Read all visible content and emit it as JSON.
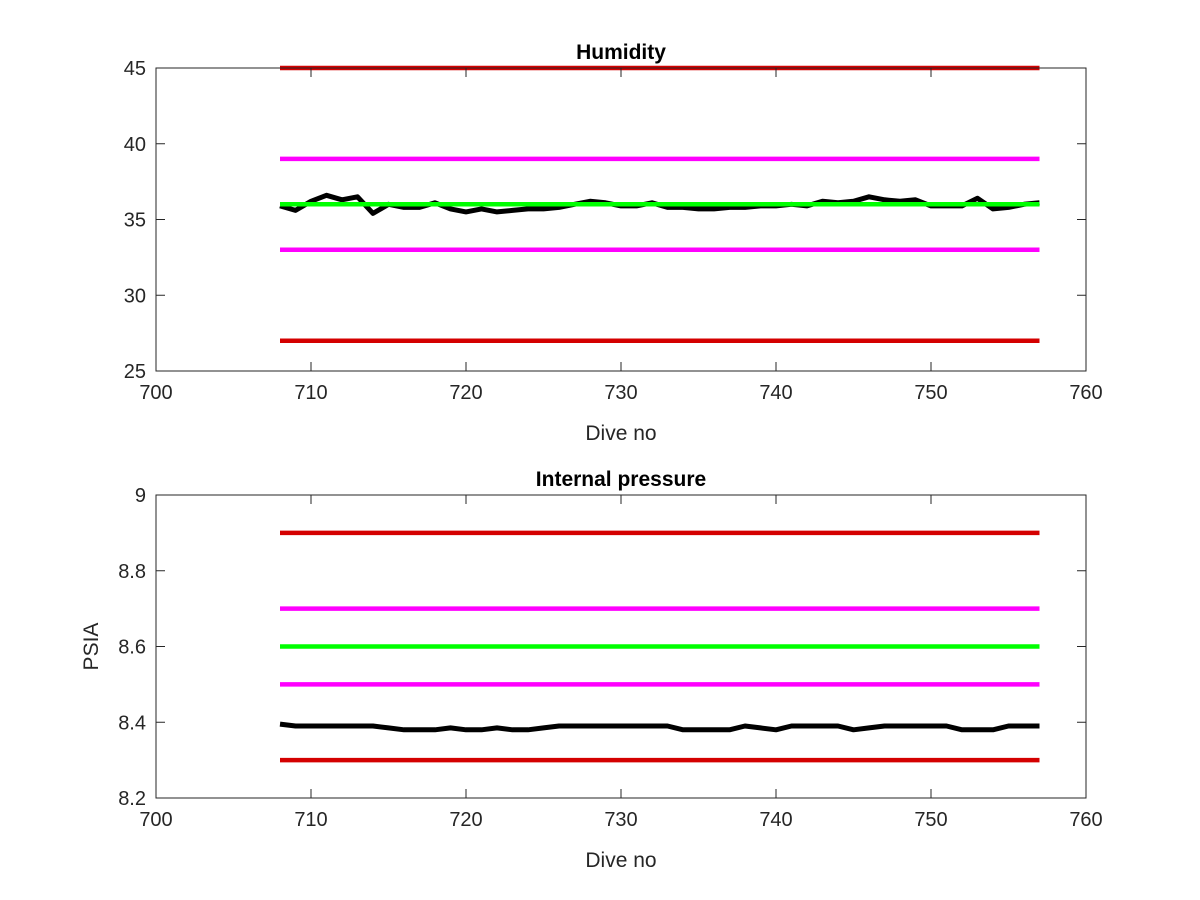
{
  "chart_data": [
    {
      "type": "line",
      "title": "Humidity",
      "xlabel": "Dive no",
      "ylabel": "",
      "xlim": [
        700,
        760
      ],
      "ylim": [
        25,
        45
      ],
      "xticks": [
        700,
        710,
        720,
        730,
        740,
        750,
        760
      ],
      "yticks": [
        25,
        30,
        35,
        40,
        45
      ],
      "xtick_labels": [
        "700",
        "710",
        "720",
        "730",
        "740",
        "750",
        "760"
      ],
      "ytick_labels": [
        "25",
        "30",
        "35",
        "40",
        "45"
      ],
      "grid": false,
      "series": [
        {
          "color": "#d40000",
          "x": [
            708,
            757
          ],
          "values": [
            45,
            45
          ]
        },
        {
          "color": "#ff00ff",
          "x": [
            708,
            757
          ],
          "values": [
            39,
            39
          ]
        },
        {
          "color": "#ff00ff",
          "x": [
            708,
            757
          ],
          "values": [
            33,
            33
          ]
        },
        {
          "color": "#d40000",
          "x": [
            708,
            757
          ],
          "values": [
            27,
            27
          ]
        },
        {
          "color": "#000000",
          "x": [
            708,
            709,
            710,
            711,
            712,
            713,
            714,
            715,
            716,
            717,
            718,
            719,
            720,
            721,
            722,
            723,
            724,
            725,
            726,
            727,
            728,
            729,
            730,
            731,
            732,
            733,
            734,
            735,
            736,
            737,
            738,
            739,
            740,
            741,
            742,
            743,
            744,
            745,
            746,
            747,
            748,
            749,
            750,
            751,
            752,
            753,
            754,
            755,
            756,
            757
          ],
          "values": [
            35.9,
            35.6,
            36.2,
            36.6,
            36.3,
            36.5,
            35.4,
            36.0,
            35.8,
            35.8,
            36.1,
            35.7,
            35.5,
            35.7,
            35.5,
            35.6,
            35.7,
            35.7,
            35.8,
            36.0,
            36.2,
            36.1,
            35.9,
            35.9,
            36.1,
            35.8,
            35.8,
            35.7,
            35.7,
            35.8,
            35.8,
            35.9,
            35.9,
            36.0,
            35.9,
            36.2,
            36.1,
            36.2,
            36.5,
            36.3,
            36.2,
            36.3,
            35.9,
            35.9,
            35.9,
            36.4,
            35.7,
            35.8,
            36.0,
            36.1
          ]
        },
        {
          "color": "#00ff00",
          "x": [
            708,
            757
          ],
          "values": [
            36,
            36
          ]
        }
      ]
    },
    {
      "type": "line",
      "title": "Internal pressure",
      "xlabel": "Dive no",
      "ylabel": "PSIA",
      "xlim": [
        700,
        760
      ],
      "ylim": [
        8.2,
        9
      ],
      "xticks": [
        700,
        710,
        720,
        730,
        740,
        750,
        760
      ],
      "yticks": [
        8.2,
        8.4,
        8.6,
        8.8,
        9
      ],
      "xtick_labels": [
        "700",
        "710",
        "720",
        "730",
        "740",
        "750",
        "760"
      ],
      "ytick_labels": [
        "8.2",
        "8.4",
        "8.6",
        "8.8",
        "9"
      ],
      "grid": false,
      "series": [
        {
          "color": "#d40000",
          "x": [
            708,
            757
          ],
          "values": [
            8.9,
            8.9
          ]
        },
        {
          "color": "#ff00ff",
          "x": [
            708,
            757
          ],
          "values": [
            8.7,
            8.7
          ]
        },
        {
          "color": "#00ff00",
          "x": [
            708,
            757
          ],
          "values": [
            8.6,
            8.6
          ]
        },
        {
          "color": "#ff00ff",
          "x": [
            708,
            757
          ],
          "values": [
            8.5,
            8.5
          ]
        },
        {
          "color": "#000000",
          "x": [
            708,
            709,
            710,
            711,
            712,
            713,
            714,
            715,
            716,
            717,
            718,
            719,
            720,
            721,
            722,
            723,
            724,
            725,
            726,
            727,
            728,
            729,
            730,
            731,
            732,
            733,
            734,
            735,
            736,
            737,
            738,
            739,
            740,
            741,
            742,
            743,
            744,
            745,
            746,
            747,
            748,
            749,
            750,
            751,
            752,
            753,
            754,
            755,
            756,
            757
          ],
          "values": [
            8.395,
            8.39,
            8.39,
            8.39,
            8.39,
            8.39,
            8.39,
            8.385,
            8.38,
            8.38,
            8.38,
            8.385,
            8.38,
            8.38,
            8.385,
            8.38,
            8.38,
            8.385,
            8.39,
            8.39,
            8.39,
            8.39,
            8.39,
            8.39,
            8.39,
            8.39,
            8.38,
            8.38,
            8.38,
            8.38,
            8.39,
            8.385,
            8.38,
            8.39,
            8.39,
            8.39,
            8.39,
            8.38,
            8.385,
            8.39,
            8.39,
            8.39,
            8.39,
            8.39,
            8.38,
            8.38,
            8.38,
            8.39,
            8.39,
            8.39
          ]
        },
        {
          "color": "#d40000",
          "x": [
            708,
            757
          ],
          "values": [
            8.3,
            8.3
          ]
        }
      ]
    }
  ]
}
